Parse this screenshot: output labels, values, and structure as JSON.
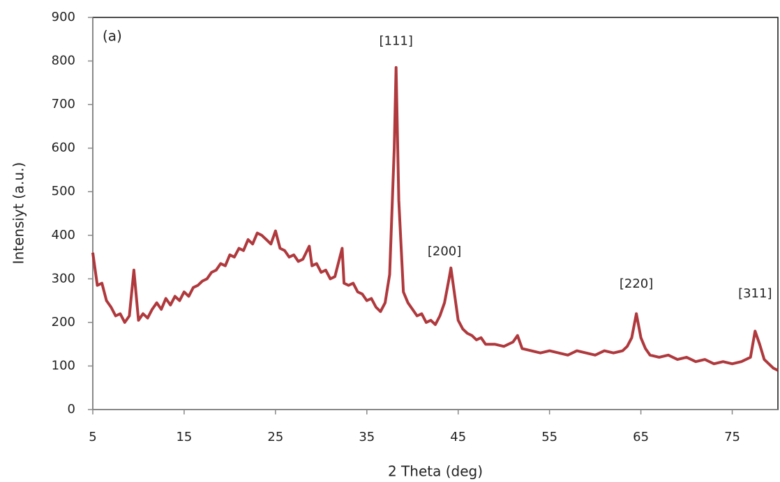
{
  "chart_data": {
    "type": "line",
    "xlabel": "2 Theta (deg)",
    "ylabel": "Intensiyt (a.u.)",
    "annotations": [
      "(a)",
      "[111]",
      "[200]",
      "[220]",
      "[311]"
    ],
    "x": [
      5,
      5.5,
      6,
      6.5,
      7,
      7.5,
      8,
      8.5,
      9,
      9.5,
      10,
      10.5,
      11,
      11.5,
      12,
      12.5,
      13,
      13.5,
      14,
      14.5,
      15,
      15.5,
      16,
      16.5,
      17,
      17.5,
      18,
      18.5,
      19,
      19.5,
      20,
      20.5,
      21,
      21.5,
      22,
      22.5,
      23,
      23.5,
      24,
      24.5,
      25,
      25.5,
      26,
      26.5,
      27,
      27.5,
      28,
      28.7,
      29,
      29.5,
      30,
      30.5,
      31,
      31.5,
      32.3,
      32.5,
      33,
      33.5,
      34,
      34.5,
      35,
      35.5,
      36,
      36.5,
      37,
      37.5,
      38,
      38.2,
      38.5,
      39,
      39.5,
      40,
      40.5,
      41,
      41.5,
      42,
      42.5,
      43,
      43.5,
      44,
      44.2,
      44.5,
      45,
      45.5,
      46,
      46.5,
      47,
      47.5,
      48,
      49,
      50,
      51,
      51.5,
      52,
      53,
      54,
      55,
      56,
      57,
      58,
      59,
      60,
      61,
      62,
      63,
      63.5,
      64,
      64.5,
      65,
      65.5,
      66,
      67,
      68,
      69,
      70,
      71,
      72,
      73,
      74,
      75,
      76,
      77,
      77.5,
      78,
      78.5,
      79,
      79.5,
      80
    ],
    "series": [
      {
        "color": "#a8282c",
        "values": [
          360,
          285,
          290,
          250,
          235,
          215,
          220,
          200,
          215,
          320,
          205,
          220,
          210,
          230,
          245,
          230,
          255,
          240,
          260,
          250,
          270,
          260,
          280,
          285,
          295,
          300,
          315,
          320,
          335,
          330,
          355,
          350,
          370,
          365,
          390,
          380,
          405,
          400,
          390,
          380,
          410,
          370,
          365,
          350,
          355,
          340,
          345,
          375,
          330,
          335,
          315,
          320,
          300,
          305,
          370,
          290,
          285,
          290,
          270,
          265,
          250,
          255,
          235,
          225,
          245,
          310,
          600,
          785,
          480,
          270,
          245,
          230,
          215,
          220,
          200,
          205,
          195,
          215,
          245,
          300,
          325,
          280,
          205,
          185,
          175,
          170,
          160,
          165,
          150,
          150,
          145,
          155,
          170,
          140,
          135,
          130,
          135,
          130,
          125,
          135,
          130,
          125,
          135,
          130,
          135,
          145,
          165,
          220,
          165,
          140,
          125,
          120,
          125,
          115,
          120,
          110,
          115,
          105,
          110,
          105,
          110,
          120,
          180,
          150,
          115,
          105,
          95,
          90
        ]
      }
    ],
    "xlim": [
      5,
      80
    ],
    "ylim": [
      0,
      900
    ],
    "xticks": [
      5,
      15,
      25,
      35,
      45,
      55,
      65,
      75
    ],
    "yticks": [
      0,
      100,
      200,
      300,
      400,
      500,
      600,
      700,
      800,
      900
    ]
  }
}
